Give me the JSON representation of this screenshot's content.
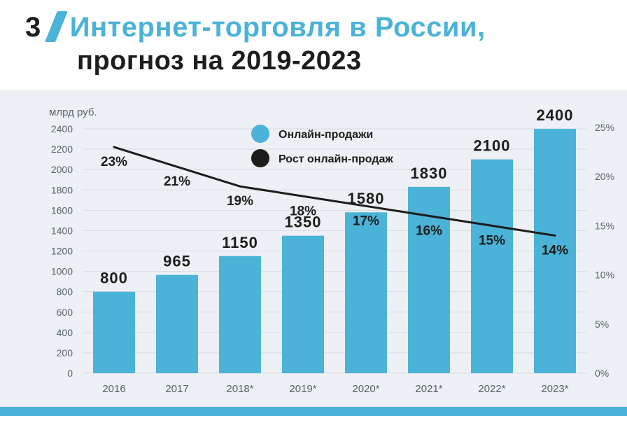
{
  "header": {
    "number": "3",
    "title_line1": "Интернет-торговля в России,",
    "title_line2": "прогноз на 2019-2023"
  },
  "colors": {
    "accent_blue": "#4bb2d8",
    "dark": "#1d1d1b",
    "panel_bg": "#edf0f4",
    "grid": "#d8dde3",
    "axis_text": "#57646f"
  },
  "chart_data": {
    "type": "bar",
    "title": "Интернет-торговля в России, прогноз на 2019-2023",
    "categories": [
      "2016",
      "2017",
      "2018*",
      "2019*",
      "2020*",
      "2021*",
      "2022*",
      "2023*"
    ],
    "series": [
      {
        "name": "Онлайн-продажи",
        "type": "bar",
        "values": [
          800,
          965,
          1150,
          1350,
          1580,
          1830,
          2100,
          2400
        ],
        "unit": "млрд руб.",
        "color": "#4bb2d8"
      },
      {
        "name": "Рост онлайн-продаж",
        "type": "line",
        "values": [
          23,
          21,
          19,
          18,
          17,
          16,
          15,
          14
        ],
        "unit": "%",
        "color": "#1d1d1b"
      }
    ],
    "left_axis": {
      "label": "млрд руб.",
      "ticks": [
        0,
        200,
        400,
        600,
        800,
        1000,
        1200,
        1400,
        1600,
        1800,
        2000,
        2200,
        2400
      ]
    },
    "right_axis": {
      "ticks": [
        0,
        5,
        10,
        15,
        20,
        25
      ],
      "suffix": "%"
    },
    "grid": true,
    "legend_position": "top-center"
  }
}
